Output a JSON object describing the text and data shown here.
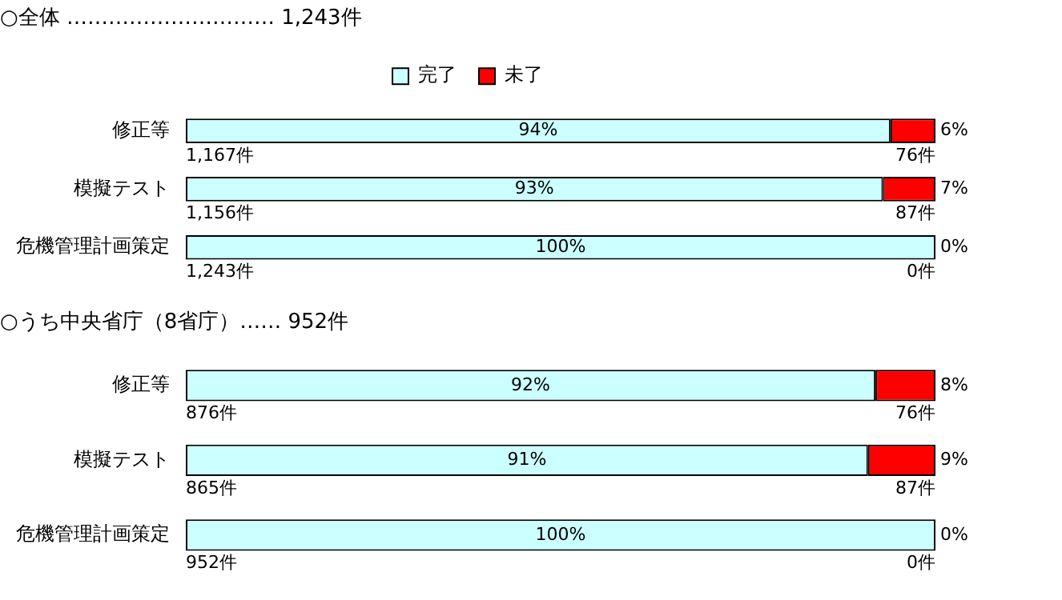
{
  "chart_data": [
    {
      "type": "bar",
      "orientation": "horizontal",
      "stacked": true,
      "title": "○全体 ………………………… 1,243件",
      "categories": [
        "修正等",
        "模擬テスト",
        "危機管理計画策定"
      ],
      "series": [
        {
          "name": "完了",
          "color": "#ccffff",
          "values": [
            94,
            93,
            100
          ],
          "value_labels": [
            "94%",
            "93%",
            "100%"
          ]
        },
        {
          "name": "未了",
          "color": "#ff0000",
          "values": [
            6,
            7,
            0
          ],
          "value_labels": [
            "6%",
            "7%",
            "0%"
          ]
        }
      ],
      "tick_labels": "y",
      "legend": "top",
      "annotations": [
        "1,167件",
        "76件",
        "1,156件",
        "87件",
        "1,243件",
        "0件"
      ]
    },
    {
      "type": "bar",
      "orientation": "horizontal",
      "stacked": true,
      "title": "○うち中央省庁（8省庁）…… 952件",
      "categories": [
        "修正等",
        "模擬テスト",
        "危機管理計画策定"
      ],
      "series": [
        {
          "color": "#ccffff",
          "values": [
            92,
            91,
            100
          ],
          "value_labels": [
            "92%",
            "91%",
            "100%"
          ]
        },
        {
          "color": "#ff0000",
          "values": [
            8,
            9,
            0
          ],
          "value_labels": [
            "8%",
            "9%",
            "0%"
          ]
        }
      ],
      "tick_labels": "y",
      "legend": false,
      "annotations": [
        "876件",
        "76件",
        "865件",
        "87件",
        "952件",
        "0件"
      ]
    }
  ]
}
